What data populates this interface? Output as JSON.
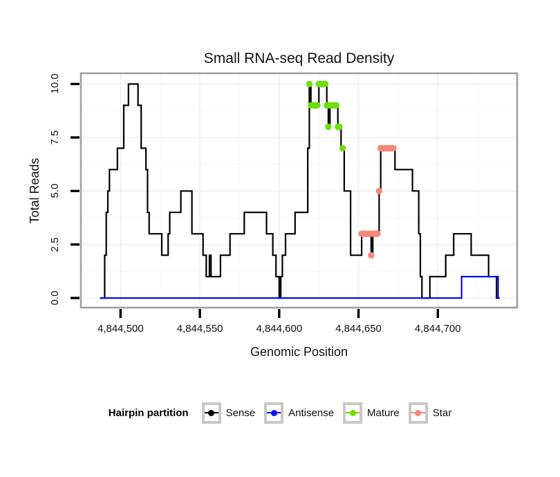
{
  "title": "Small RNA-seq Read Density",
  "x_axis": {
    "label": "Genomic Position",
    "tick_values": [
      4844500,
      4844550,
      4844600,
      4844650,
      4844700
    ],
    "tick_labels": [
      "4,844,500",
      "4,844,550",
      "4,844,600",
      "4,844,650",
      "4,844,700"
    ]
  },
  "y_axis": {
    "label": "Total Reads",
    "tick_values": [
      0,
      2.5,
      5,
      7.5,
      10
    ],
    "tick_labels": [
      "0.0",
      "2.5",
      "5.0",
      "7.5",
      "10.0"
    ]
  },
  "legend": {
    "title": "Hairpin partition",
    "items": [
      {
        "label": "Sense",
        "color": "#000000"
      },
      {
        "label": "Antisense",
        "color": "#0A0AE8"
      },
      {
        "label": "Mature",
        "color": "#6EDF0A"
      },
      {
        "label": "Star",
        "color": "#F5877B"
      }
    ]
  },
  "colors": {
    "panel_border": "#A0A0A0",
    "grid_major": "#EFEFEF",
    "grid_minor": "#F7F7F7",
    "background": "#FFFFFF"
  },
  "chart_data": {
    "type": "line",
    "title": "Small RNA-seq Read Density",
    "xlabel": "Genomic Position",
    "ylabel": "Total Reads",
    "xlim": [
      4844475,
      4844750
    ],
    "ylim": [
      -0.45,
      10.5
    ],
    "grid": true,
    "legend_position": "bottom",
    "legend_title": "Hairpin partition",
    "series": [
      {
        "name": "Sense",
        "type": "step",
        "color": "#000000",
        "points": [
          [
            4844487,
            0
          ],
          [
            4844489,
            0
          ],
          [
            4844490,
            2
          ],
          [
            4844491,
            4
          ],
          [
            4844492,
            5
          ],
          [
            4844493,
            6
          ],
          [
            4844498,
            7
          ],
          [
            4844502,
            9
          ],
          [
            4844505,
            10
          ],
          [
            4844511,
            9
          ],
          [
            4844513,
            7
          ],
          [
            4844516,
            6
          ],
          [
            4844517,
            4
          ],
          [
            4844518,
            3
          ],
          [
            4844526,
            2
          ],
          [
            4844530,
            3
          ],
          [
            4844531,
            4
          ],
          [
            4844538,
            5
          ],
          [
            4844545,
            3
          ],
          [
            4844552,
            2
          ],
          [
            4844554,
            1
          ],
          [
            4844556,
            2
          ],
          [
            4844557,
            1
          ],
          [
            4844563,
            2
          ],
          [
            4844569,
            3
          ],
          [
            4844578,
            4
          ],
          [
            4844592,
            3
          ],
          [
            4844596,
            2
          ],
          [
            4844598,
            1
          ],
          [
            4844600,
            0
          ],
          [
            4844601,
            1
          ],
          [
            4844602,
            2
          ],
          [
            4844604,
            3
          ],
          [
            4844610,
            4
          ],
          [
            4844618,
            7
          ],
          [
            4844619,
            10
          ],
          [
            4844620,
            9
          ],
          [
            4844625,
            10
          ],
          [
            4844630,
            9
          ],
          [
            4844631,
            8
          ],
          [
            4844632,
            9
          ],
          [
            4844637,
            8
          ],
          [
            4844639,
            7
          ],
          [
            4844641,
            5
          ],
          [
            4844645,
            2
          ],
          [
            4844652,
            3
          ],
          [
            4844658,
            2
          ],
          [
            4844659,
            3
          ],
          [
            4844663,
            5
          ],
          [
            4844664,
            7
          ],
          [
            4844673,
            6
          ],
          [
            4844684,
            5
          ],
          [
            4844688,
            3
          ],
          [
            4844689,
            1
          ],
          [
            4844690,
            0
          ],
          [
            4844695,
            1
          ],
          [
            4844705,
            2
          ],
          [
            4844710,
            3
          ],
          [
            4844721,
            2
          ],
          [
            4844732,
            1
          ],
          [
            4844737,
            0
          ],
          [
            4844739,
            0
          ]
        ]
      },
      {
        "name": "Antisense",
        "type": "step",
        "color": "#0A0AE8",
        "points": [
          [
            4844487,
            0
          ],
          [
            4844715,
            1
          ],
          [
            4844738,
            0
          ],
          [
            4844739,
            0
          ]
        ]
      },
      {
        "name": "Mature",
        "type": "scatter",
        "color": "#6EDF0A",
        "points": [
          [
            4844619,
            10
          ],
          [
            4844620,
            9
          ],
          [
            4844621,
            9
          ],
          [
            4844622,
            9
          ],
          [
            4844623,
            9
          ],
          [
            4844624,
            9
          ],
          [
            4844625,
            10
          ],
          [
            4844626,
            10
          ],
          [
            4844627,
            10
          ],
          [
            4844628,
            10
          ],
          [
            4844629,
            10
          ],
          [
            4844630,
            9
          ],
          [
            4844631,
            8
          ],
          [
            4844632,
            9
          ],
          [
            4844633,
            9
          ],
          [
            4844634,
            9
          ],
          [
            4844635,
            9
          ],
          [
            4844636,
            9
          ],
          [
            4844637,
            8
          ],
          [
            4844638,
            8
          ],
          [
            4844640,
            7
          ]
        ]
      },
      {
        "name": "Star",
        "type": "scatter",
        "color": "#F5877B",
        "points": [
          [
            4844652,
            3
          ],
          [
            4844653,
            3
          ],
          [
            4844654,
            3
          ],
          [
            4844655,
            3
          ],
          [
            4844656,
            3
          ],
          [
            4844657,
            3
          ],
          [
            4844658,
            2
          ],
          [
            4844659,
            3
          ],
          [
            4844660,
            3
          ],
          [
            4844661,
            3
          ],
          [
            4844662,
            3
          ],
          [
            4844663,
            5
          ],
          [
            4844664,
            7
          ],
          [
            4844665,
            7
          ],
          [
            4844666,
            7
          ],
          [
            4844667,
            7
          ],
          [
            4844668,
            7
          ],
          [
            4844669,
            7
          ],
          [
            4844670,
            7
          ],
          [
            4844671,
            7
          ],
          [
            4844672,
            7
          ]
        ]
      }
    ]
  }
}
